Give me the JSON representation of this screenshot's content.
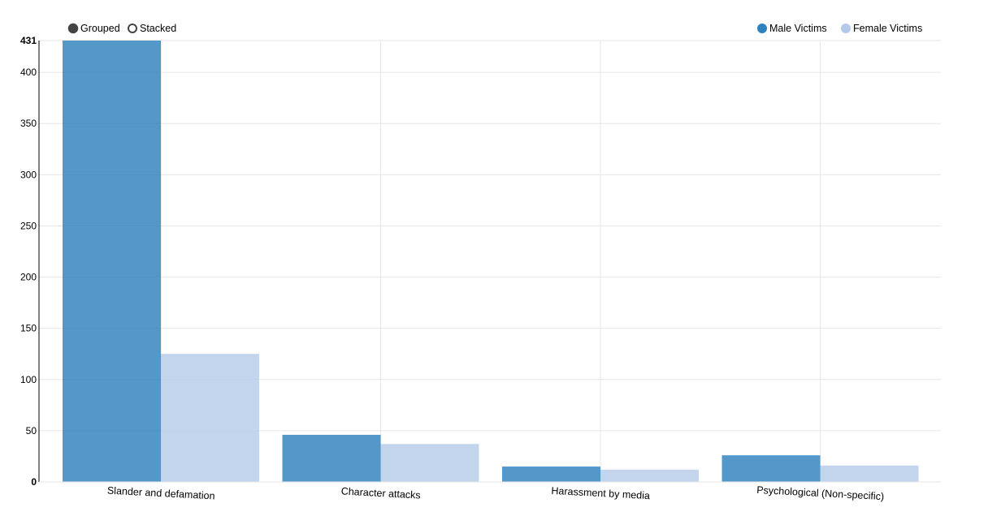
{
  "controls": {
    "grouped_label": "Grouped",
    "stacked_label": "Stacked",
    "selected": "grouped"
  },
  "colors": {
    "male": "#2e81be",
    "female": "#b4c9e9",
    "grid": "#e6e6e6",
    "axis": "#000000",
    "control_fill": "#444444"
  },
  "chart_data": {
    "type": "bar",
    "mode": "grouped",
    "categories": [
      "Slander and defamation",
      "Character attacks",
      "Harassment by media",
      "Psychological (Non-specific)"
    ],
    "series": [
      {
        "name": "Male Victims",
        "values": [
          431,
          46,
          15,
          26
        ]
      },
      {
        "name": "Female Victims",
        "values": [
          125,
          37,
          12,
          16
        ]
      }
    ],
    "ylim": [
      0,
      431
    ],
    "yticks": [
      0,
      50,
      100,
      150,
      200,
      250,
      300,
      350,
      400,
      431
    ],
    "grid": true,
    "legend_position": "top-right"
  }
}
